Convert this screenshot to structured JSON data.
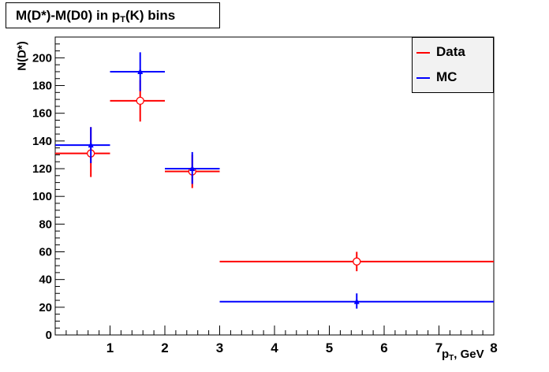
{
  "title": {
    "main": "M(D*)-M(D0) in p",
    "sub": "T",
    "rest": "(K) bins"
  },
  "chart_data": {
    "type": "scatter",
    "xlabel": {
      "main": "p",
      "sub": "T",
      "rest": ", GeV"
    },
    "ylabel": "N(D*)",
    "xlim": [
      0,
      8
    ],
    "ylim": [
      0,
      215
    ],
    "x_ticks": [
      1,
      2,
      3,
      4,
      5,
      6,
      7,
      8
    ],
    "y_ticks": [
      0,
      20,
      40,
      60,
      80,
      100,
      120,
      140,
      160,
      180,
      200
    ],
    "legend": "top-right",
    "grid": false,
    "series": [
      {
        "name": "Data",
        "color": "#ff0000",
        "marker": "open-circle",
        "points": [
          {
            "x": 0.65,
            "xlo": 0.0,
            "xhi": 1.0,
            "y": 131,
            "ylo": 114,
            "yhi": 150
          },
          {
            "x": 1.55,
            "xlo": 1.0,
            "xhi": 2.0,
            "y": 169,
            "ylo": 154,
            "yhi": 184
          },
          {
            "x": 2.5,
            "xlo": 2.0,
            "xhi": 3.0,
            "y": 118,
            "ylo": 106,
            "yhi": 130
          },
          {
            "x": 5.5,
            "xlo": 3.0,
            "xhi": 8.0,
            "y": 53,
            "ylo": 46,
            "yhi": 60
          }
        ]
      },
      {
        "name": "MC",
        "color": "#0000ff",
        "marker": "filled-triangle",
        "points": [
          {
            "x": 0.65,
            "xlo": 0.0,
            "xhi": 1.0,
            "y": 137,
            "ylo": 124,
            "yhi": 150
          },
          {
            "x": 1.55,
            "xlo": 1.0,
            "xhi": 2.0,
            "y": 190,
            "ylo": 176,
            "yhi": 204
          },
          {
            "x": 2.5,
            "xlo": 2.0,
            "xhi": 3.0,
            "y": 120,
            "ylo": 109,
            "yhi": 132
          },
          {
            "x": 5.5,
            "xlo": 3.0,
            "xhi": 8.0,
            "y": 24,
            "ylo": 19,
            "yhi": 30
          }
        ]
      }
    ]
  }
}
